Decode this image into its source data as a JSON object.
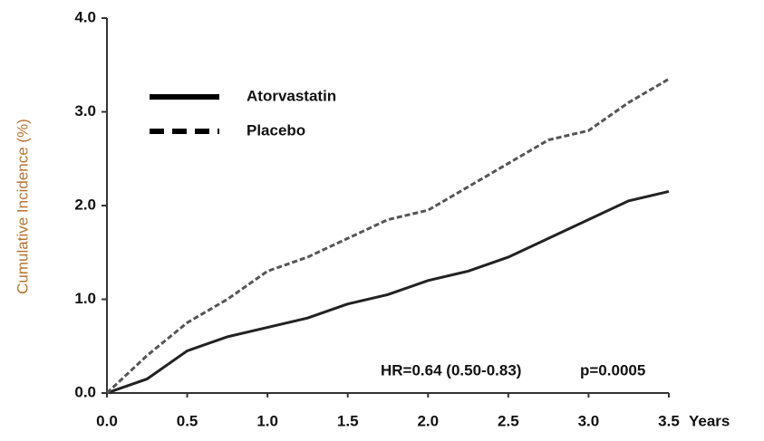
{
  "chart_data": {
    "type": "line",
    "y_label": "Cumulative Incidence (%)",
    "x_label": "Years",
    "annotations": [
      "HR=0.64 (0.50-0.83)",
      "p=0.0005"
    ],
    "x": [
      0,
      0.25,
      0.5,
      0.75,
      1.0,
      1.25,
      1.5,
      1.75,
      2.0,
      2.25,
      2.5,
      2.75,
      3.0,
      3.25,
      3.5
    ],
    "series": [
      {
        "name": "Atorvastatin",
        "color": "#222222",
        "style": "solid",
        "values": [
          0,
          0.15,
          0.45,
          0.6,
          0.7,
          0.8,
          0.95,
          1.05,
          1.2,
          1.3,
          1.45,
          1.65,
          1.85,
          2.05,
          2.15
        ]
      },
      {
        "name": "Placebo",
        "color": "#555555",
        "style": "dashed",
        "values": [
          0,
          0.4,
          0.75,
          1.0,
          1.3,
          1.45,
          1.65,
          1.85,
          1.95,
          2.2,
          2.45,
          2.7,
          2.8,
          3.1,
          3.35
        ]
      }
    ],
    "xlim": [
      0,
      3.5
    ],
    "ylim": [
      0,
      4
    ],
    "xticks": [
      {
        "value": 0,
        "label": "0.0"
      },
      0.5,
      {
        "value": 1,
        "label": "1.0"
      },
      1.5,
      {
        "value": 2,
        "label": "2.0"
      },
      2.5,
      {
        "value": 3,
        "label": "3.0"
      },
      3.5
    ],
    "yticks": [
      {
        "value": 0,
        "label": "0.0"
      },
      {
        "value": 1,
        "label": "1.0"
      },
      {
        "value": 2,
        "label": "2.0"
      },
      {
        "value": 3,
        "label": "3.0"
      },
      {
        "value": 4,
        "label": "4.0"
      }
    ],
    "grid": false
  }
}
